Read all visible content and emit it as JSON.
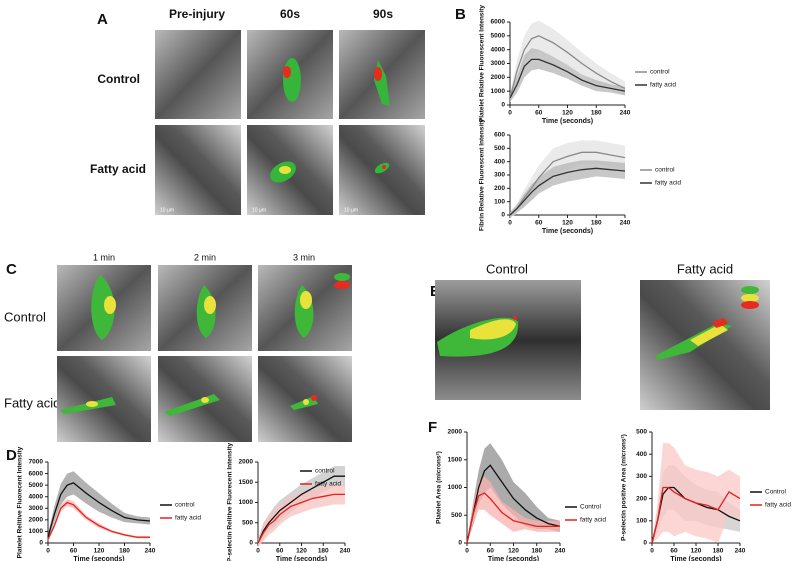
{
  "panels": {
    "A": {
      "letter": "A",
      "columns": [
        "Pre-injury",
        "60s",
        "90s"
      ],
      "rows": [
        "Control",
        "Fatty acid"
      ],
      "scale_label": "10 µm"
    },
    "B": {
      "letter": "B"
    },
    "C": {
      "letter": "C",
      "columns": [
        "1 min",
        "2 min",
        "3 min"
      ],
      "rows": [
        "Control",
        "Fatty acid"
      ]
    },
    "D": {
      "letter": "D"
    },
    "E": {
      "letter": "E",
      "columns": [
        "Control",
        "Fatty acid"
      ]
    },
    "F": {
      "letter": "F"
    }
  },
  "chart_data": [
    {
      "type": "line",
      "y_label": "Platelet Relative Fluorescent Intensity",
      "x_label": "Time (seconds)",
      "x": [
        0,
        15,
        30,
        45,
        60,
        90,
        120,
        150,
        180,
        210,
        240
      ],
      "xlim": [
        0,
        240
      ],
      "xticks": [
        0,
        60,
        120,
        180,
        240
      ],
      "ylim": [
        0,
        6000
      ],
      "yticks": [
        0,
        1000,
        2000,
        3000,
        4000,
        5000,
        6000
      ],
      "series": [
        {
          "name": "control",
          "color": "#8a8a8a",
          "band_color": "#e3e3e3",
          "values": [
            500,
            2500,
            4000,
            4800,
            5000,
            4500,
            3800,
            3000,
            2300,
            1700,
            1200
          ],
          "errors": [
            300,
            800,
            1000,
            1100,
            1100,
            1000,
            900,
            800,
            700,
            600,
            500
          ]
        },
        {
          "name": "fatty acid",
          "color": "#333333",
          "band_color": "#b5b5b5",
          "values": [
            500,
            1500,
            2800,
            3300,
            3300,
            2900,
            2400,
            1800,
            1400,
            1200,
            1000
          ],
          "errors": [
            300,
            600,
            800,
            800,
            700,
            600,
            500,
            400,
            400,
            300,
            300
          ]
        }
      ]
    },
    {
      "type": "line",
      "y_label": "Fibrin Relative Fluorescent Intensity",
      "x_label": "Time (seconds)",
      "x": [
        0,
        15,
        30,
        45,
        60,
        90,
        120,
        150,
        180,
        210,
        240
      ],
      "xlim": [
        0,
        240
      ],
      "xticks": [
        0,
        60,
        120,
        180,
        240
      ],
      "ylim": [
        0,
        600
      ],
      "yticks": [
        0,
        100,
        200,
        300,
        400,
        500,
        600
      ],
      "series": [
        {
          "name": "control",
          "color": "#8a8a8a",
          "band_color": "#e3e3e3",
          "values": [
            0,
            50,
            130,
            200,
            280,
            400,
            440,
            470,
            470,
            450,
            430
          ],
          "errors": [
            20,
            40,
            60,
            80,
            90,
            100,
            100,
            90,
            90,
            90,
            90
          ]
        },
        {
          "name": "fatty acid",
          "color": "#333333",
          "band_color": "#b5b5b5",
          "values": [
            0,
            50,
            110,
            170,
            220,
            290,
            320,
            340,
            350,
            340,
            330
          ],
          "errors": [
            20,
            30,
            50,
            60,
            60,
            70,
            70,
            70,
            60,
            60,
            60
          ]
        }
      ]
    },
    {
      "type": "line",
      "y_label": "Platelet Relitive Fluorecent Intensity",
      "x_label": "Time (seconds)",
      "x": [
        0,
        15,
        30,
        45,
        60,
        90,
        120,
        150,
        180,
        210,
        240
      ],
      "xlim": [
        0,
        240
      ],
      "xticks": [
        0,
        60,
        120,
        180,
        240
      ],
      "ylim": [
        0,
        7000
      ],
      "yticks": [
        0,
        1000,
        2000,
        3000,
        4000,
        5000,
        6000,
        7000
      ],
      "series": [
        {
          "name": "control",
          "color": "#111111",
          "band_color": "#9a9a9a",
          "values": [
            500,
            2500,
            4200,
            5000,
            5200,
            4300,
            3500,
            2800,
            2200,
            2000,
            1900
          ],
          "errors": [
            300,
            700,
            900,
            1000,
            1000,
            900,
            800,
            600,
            400,
            300,
            300
          ]
        },
        {
          "name": "fatty acid",
          "color": "#e8201a",
          "band_color": "#f7b3b0",
          "values": [
            300,
            1500,
            3000,
            3500,
            3300,
            2200,
            1500,
            1000,
            700,
            500,
            500
          ],
          "errors": [
            100,
            200,
            300,
            300,
            300,
            200,
            200,
            100,
            100,
            100,
            100
          ]
        }
      ]
    },
    {
      "type": "line",
      "y_label": "P-selectin Relitive Fluorecent Intensity",
      "x_label": "Time (seconds)",
      "x": [
        0,
        15,
        30,
        45,
        60,
        90,
        120,
        150,
        180,
        210,
        240
      ],
      "xlim": [
        0,
        240
      ],
      "xticks": [
        0,
        60,
        120,
        180,
        240
      ],
      "ylim": [
        0,
        2000
      ],
      "yticks": [
        0,
        500,
        1000,
        1500,
        2000
      ],
      "series": [
        {
          "name": "control",
          "color": "#111111",
          "band_color": "#c4c4c4",
          "values": [
            0,
            300,
            500,
            650,
            800,
            1000,
            1200,
            1350,
            1500,
            1650,
            1650
          ],
          "errors": [
            100,
            200,
            200,
            250,
            250,
            250,
            250,
            250,
            250,
            250,
            250
          ]
        },
        {
          "name": "fatty acid",
          "color": "#e8201a",
          "band_color": "#f7c3c0",
          "values": [
            0,
            250,
            450,
            550,
            700,
            900,
            1000,
            1100,
            1150,
            1200,
            1200
          ],
          "errors": [
            100,
            200,
            250,
            250,
            250,
            250,
            250,
            250,
            250,
            250,
            250
          ]
        }
      ]
    },
    {
      "type": "line",
      "y_label": "Platelet Area (microns²)",
      "x_label": "Time (seconds)",
      "x": [
        0,
        15,
        30,
        45,
        60,
        90,
        120,
        150,
        180,
        210,
        240
      ],
      "xlim": [
        0,
        240
      ],
      "xticks": [
        0,
        60,
        120,
        180,
        240
      ],
      "ylim": [
        0,
        2000
      ],
      "yticks": [
        0,
        500,
        1000,
        1500,
        2000
      ],
      "series": [
        {
          "name": "Control",
          "color": "#111111",
          "band_color": "#8f8f8f",
          "values": [
            0,
            500,
            1000,
            1300,
            1400,
            1100,
            800,
            600,
            450,
            350,
            300
          ],
          "errors": [
            0,
            200,
            300,
            400,
            400,
            400,
            300,
            300,
            200,
            100,
            100
          ]
        },
        {
          "name": "fatty acid",
          "color": "#e8201a",
          "band_color": "#f7b3b0",
          "values": [
            0,
            500,
            850,
            900,
            800,
            550,
            400,
            350,
            300,
            300,
            300
          ],
          "errors": [
            0,
            200,
            250,
            300,
            300,
            200,
            200,
            100,
            100,
            100,
            100
          ]
        }
      ]
    },
    {
      "type": "line",
      "y_label": "P-selectin positive Area (microns²)",
      "x_label": "Time (seconds)",
      "x": [
        0,
        15,
        30,
        45,
        60,
        90,
        120,
        150,
        180,
        210,
        240
      ],
      "xlim": [
        0,
        240
      ],
      "xticks": [
        0,
        60,
        120,
        180,
        240
      ],
      "ylim": [
        0,
        500
      ],
      "yticks": [
        0,
        100,
        200,
        300,
        400,
        500
      ],
      "series": [
        {
          "name": "Control",
          "color": "#111111",
          "band_color": "#c8c8c8",
          "values": [
            0,
            100,
            220,
            250,
            250,
            200,
            180,
            160,
            150,
            120,
            100
          ],
          "errors": [
            0,
            50,
            100,
            100,
            100,
            100,
            80,
            80,
            80,
            60,
            50
          ]
        },
        {
          "name": "fatty acid",
          "color": "#e8201a",
          "band_color": "#f9c8c5",
          "values": [
            0,
            100,
            250,
            250,
            230,
            200,
            180,
            170,
            150,
            230,
            200
          ],
          "errors": [
            0,
            80,
            200,
            200,
            200,
            150,
            150,
            150,
            150,
            100,
            100
          ]
        }
      ]
    }
  ]
}
